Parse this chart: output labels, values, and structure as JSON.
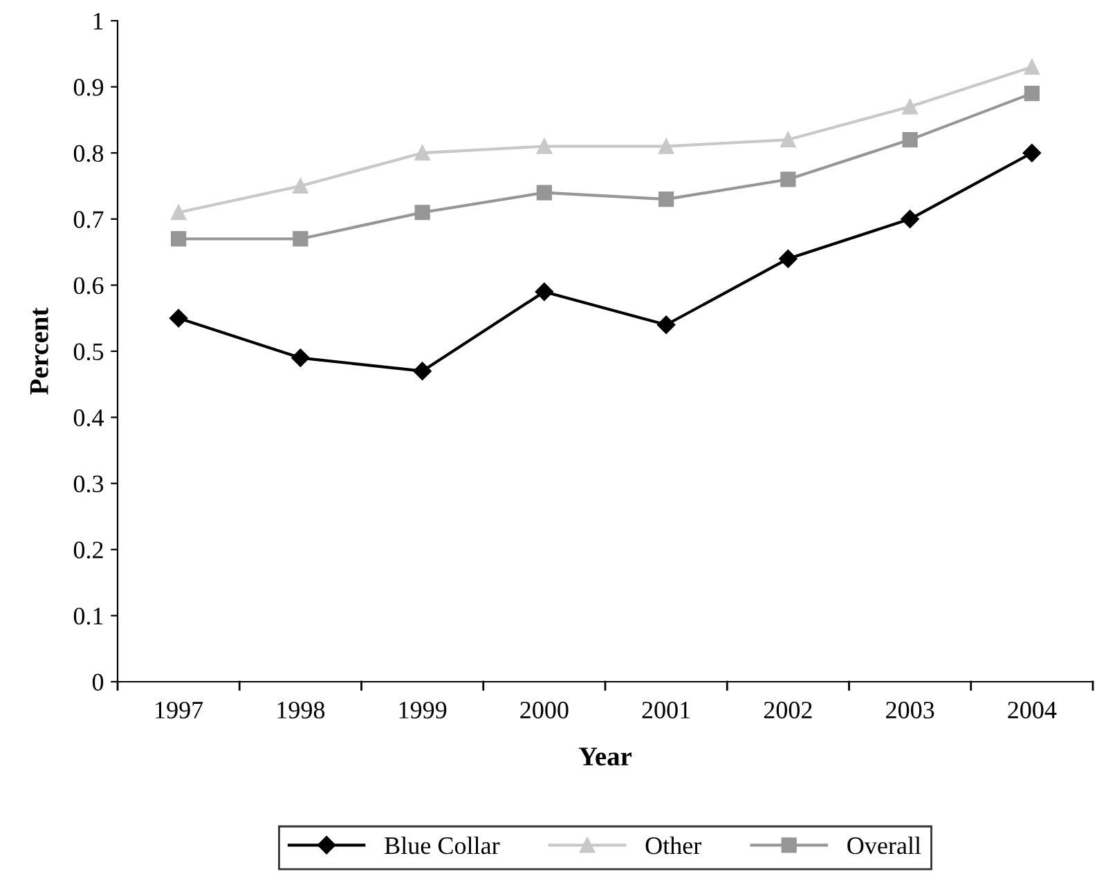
{
  "chart_data": {
    "type": "line",
    "xlabel": "Year",
    "ylabel": "Percent",
    "categories": [
      "1997",
      "1998",
      "1999",
      "2000",
      "2001",
      "2002",
      "2003",
      "2004"
    ],
    "series": [
      {
        "name": "Blue Collar",
        "color": "#000000",
        "marker": "diamond",
        "values": [
          0.55,
          0.49,
          0.47,
          0.59,
          0.54,
          0.64,
          0.7,
          0.8
        ]
      },
      {
        "name": "Other",
        "color": "#c8c8c8",
        "marker": "triangle",
        "values": [
          0.71,
          0.75,
          0.8,
          0.81,
          0.81,
          0.82,
          0.87,
          0.93
        ]
      },
      {
        "name": "Overall",
        "color": "#969696",
        "marker": "square",
        "values": [
          0.67,
          0.67,
          0.71,
          0.74,
          0.73,
          0.76,
          0.82,
          0.89
        ]
      }
    ],
    "ylim": [
      0,
      1
    ],
    "yticks": [
      0,
      0.1,
      0.2,
      0.3,
      0.4,
      0.5,
      0.6,
      0.7,
      0.8,
      0.9,
      1
    ],
    "grid": false,
    "legend": "bottom",
    "line_style": "solid"
  }
}
